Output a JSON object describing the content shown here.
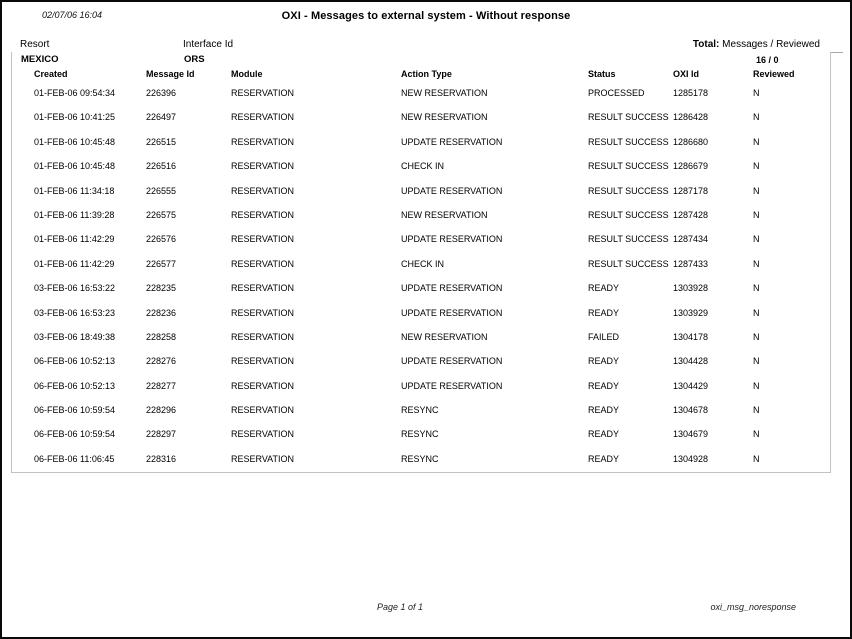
{
  "report": {
    "generated_timestamp": "02/07/06  16:04",
    "title": "OXI - Messages to external system - Without response",
    "meta": {
      "resort_label": "Resort",
      "interface_label": "Interface Id",
      "total_label": "Total:",
      "total_caption": "Messages / Reviewed"
    },
    "group": {
      "resort": "MEXICO",
      "interface": "ORS",
      "total_value": "16 / 0"
    },
    "columns": [
      "Created",
      "Message Id",
      "Module",
      "Action Type",
      "Status",
      "OXI Id",
      "Reviewed"
    ],
    "rows": [
      [
        "01-FEB-06 09:54:34",
        "226396",
        "RESERVATION",
        "NEW RESERVATION",
        "PROCESSED",
        "1285178",
        "N"
      ],
      [
        "01-FEB-06 10:41:25",
        "226497",
        "RESERVATION",
        "NEW RESERVATION",
        "RESULT SUCCESS",
        "1286428",
        "N"
      ],
      [
        "01-FEB-06 10:45:48",
        "226515",
        "RESERVATION",
        "UPDATE RESERVATION",
        "RESULT SUCCESS",
        "1286680",
        "N"
      ],
      [
        "01-FEB-06 10:45:48",
        "226516",
        "RESERVATION",
        "CHECK IN",
        "RESULT SUCCESS",
        "1286679",
        "N"
      ],
      [
        "01-FEB-06 11:34:18",
        "226555",
        "RESERVATION",
        "UPDATE RESERVATION",
        "RESULT SUCCESS",
        "1287178",
        "N"
      ],
      [
        "01-FEB-06 11:39:28",
        "226575",
        "RESERVATION",
        "NEW RESERVATION",
        "RESULT SUCCESS",
        "1287428",
        "N"
      ],
      [
        "01-FEB-06 11:42:29",
        "226576",
        "RESERVATION",
        "UPDATE RESERVATION",
        "RESULT SUCCESS",
        "1287434",
        "N"
      ],
      [
        "01-FEB-06 11:42:29",
        "226577",
        "RESERVATION",
        "CHECK IN",
        "RESULT SUCCESS",
        "1287433",
        "N"
      ],
      [
        "03-FEB-06 16:53:22",
        "228235",
        "RESERVATION",
        "UPDATE RESERVATION",
        "READY",
        "1303928",
        "N"
      ],
      [
        "03-FEB-06 16:53:23",
        "228236",
        "RESERVATION",
        "UPDATE RESERVATION",
        "READY",
        "1303929",
        "N"
      ],
      [
        "03-FEB-06 18:49:38",
        "228258",
        "RESERVATION",
        "NEW RESERVATION",
        "FAILED",
        "1304178",
        "N"
      ],
      [
        "06-FEB-06 10:52:13",
        "228276",
        "RESERVATION",
        "UPDATE RESERVATION",
        "READY",
        "1304428",
        "N"
      ],
      [
        "06-FEB-06 10:52:13",
        "228277",
        "RESERVATION",
        "UPDATE RESERVATION",
        "READY",
        "1304429",
        "N"
      ],
      [
        "06-FEB-06 10:59:54",
        "228296",
        "RESERVATION",
        "RESYNC",
        "READY",
        "1304678",
        "N"
      ],
      [
        "06-FEB-06 10:59:54",
        "228297",
        "RESERVATION",
        "RESYNC",
        "READY",
        "1304679",
        "N"
      ],
      [
        "06-FEB-06 11:06:45",
        "228316",
        "RESERVATION",
        "RESYNC",
        "READY",
        "1304928",
        "N"
      ]
    ],
    "cell_names": "cell-created,cell-message-id,cell-module,cell-action-type,cell-status,cell-oxi-id,cell-reviewed",
    "footer": {
      "page_indicator": "Page 1 of 1",
      "report_name": "oxi_msg_noresponse"
    }
  }
}
